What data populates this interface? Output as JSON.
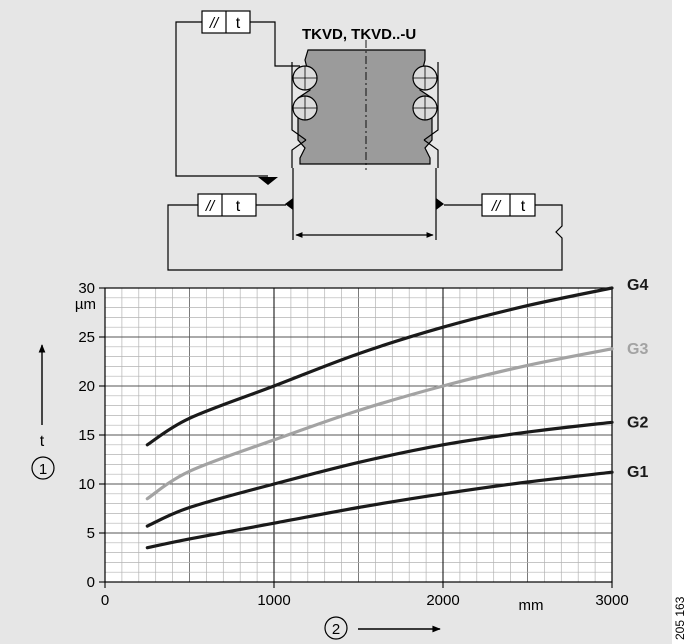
{
  "diagram": {
    "title": "TKVD, TKVD..-U",
    "tolerance_symbol": "//",
    "tolerance_value": "t"
  },
  "figure_id": "205 163",
  "chart_data": {
    "type": "line",
    "xlim": [
      0,
      3000
    ],
    "ylim": [
      0,
      30
    ],
    "x_ticks": [
      "0",
      "1000",
      "2000",
      "3000"
    ],
    "y_ticks": [
      "0",
      "5",
      "10",
      "15",
      "20",
      "25",
      "30"
    ],
    "x_unit": "mm",
    "y_unit": "µm",
    "y_label": "t",
    "x_marker": "2",
    "y_marker": "1",
    "grid": true,
    "series": [
      {
        "name": "G1",
        "color": "#1a1a1a",
        "x": [
          250,
          500,
          1000,
          1500,
          2000,
          2500,
          3000
        ],
        "values": [
          3.5,
          4.4,
          6.0,
          7.6,
          9.0,
          10.2,
          11.2
        ]
      },
      {
        "name": "G2",
        "color": "#1a1a1a",
        "x": [
          250,
          500,
          1000,
          1500,
          2000,
          2500,
          3000
        ],
        "values": [
          5.7,
          7.6,
          10.0,
          12.2,
          14.0,
          15.3,
          16.3
        ]
      },
      {
        "name": "G3",
        "color": "#a3a3a3",
        "x": [
          250,
          500,
          1000,
          1500,
          2000,
          2500,
          3000
        ],
        "values": [
          8.5,
          11.3,
          14.5,
          17.5,
          20.0,
          22.1,
          23.8
        ]
      },
      {
        "name": "G4",
        "color": "#1a1a1a",
        "x": [
          250,
          500,
          1000,
          1500,
          2000,
          2500,
          3000
        ],
        "values": [
          14.0,
          16.7,
          20.0,
          23.3,
          26.0,
          28.2,
          30.0
        ]
      }
    ]
  }
}
